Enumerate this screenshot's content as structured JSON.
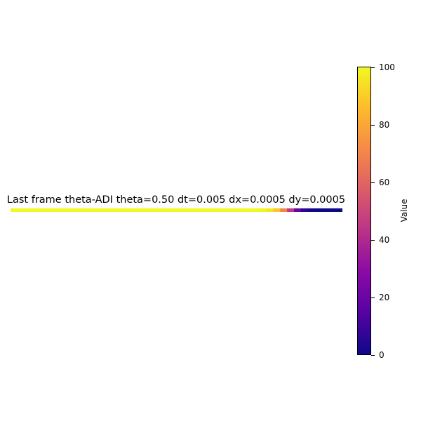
{
  "chart_data": {
    "type": "heatmap",
    "title": "Last frame theta-ADI theta=0.50 dt=0.005 dx=0.0005 dy=0.0005",
    "colormap": "plasma",
    "colorbar": {
      "label": "Value",
      "range": [
        0,
        100
      ],
      "ticks": [
        0,
        20,
        40,
        60,
        80,
        100
      ],
      "tick_labels": [
        "0",
        "20",
        "40",
        "60",
        "80",
        "100"
      ]
    },
    "profile": {
      "description": "value along the strip",
      "values": [
        100,
        100,
        100,
        100,
        100,
        100,
        100,
        100,
        100,
        100,
        100,
        100,
        100,
        100,
        100,
        100,
        100,
        100,
        100,
        100,
        100,
        100,
        100,
        100,
        100,
        100,
        100,
        100,
        100,
        100,
        100,
        100,
        100,
        100,
        100,
        100,
        99,
        96,
        88,
        70,
        45,
        20,
        6,
        1,
        0,
        0,
        0,
        0
      ]
    }
  }
}
